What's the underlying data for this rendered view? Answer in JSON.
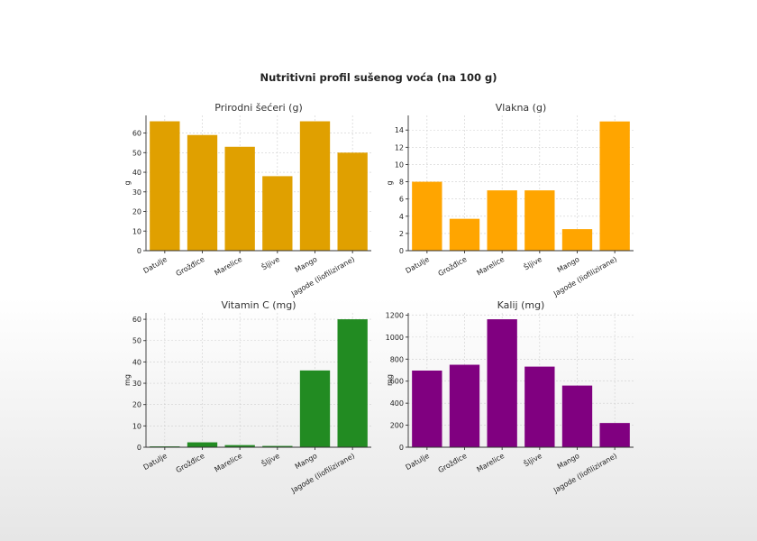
{
  "figure": {
    "title": "Nutritivni profil sušenog voća (na 100 g)"
  },
  "chart_data": [
    {
      "type": "bar",
      "title": "Prirodni šećeri (g)",
      "xlabel": "",
      "ylabel": "g",
      "categories": [
        "Datulje",
        "Grožđice",
        "Marelice",
        "Šljive",
        "Mango",
        "Jagode (liofilizirane)"
      ],
      "values": [
        66,
        59,
        53,
        38,
        66,
        50
      ],
      "ylim": [
        0,
        69
      ],
      "yticks": [
        0,
        10,
        20,
        30,
        40,
        50,
        60
      ],
      "color": "#E0A000",
      "grid": true
    },
    {
      "type": "bar",
      "title": "Vlakna (g)",
      "xlabel": "",
      "ylabel": "g",
      "categories": [
        "Datulje",
        "Grožđice",
        "Marelice",
        "Šljive",
        "Mango",
        "Jagode (liofilizirane)"
      ],
      "values": [
        8,
        3.7,
        7,
        7,
        2.5,
        15
      ],
      "ylim": [
        0,
        15.7
      ],
      "yticks": [
        0,
        2,
        4,
        6,
        8,
        10,
        12,
        14
      ],
      "color": "#FFA500",
      "grid": true
    },
    {
      "type": "bar",
      "title": "Vitamin C (mg)",
      "xlabel": "",
      "ylabel": "mg",
      "categories": [
        "Datulje",
        "Grožđice",
        "Marelice",
        "Šljive",
        "Mango",
        "Jagode (liofilizirane)"
      ],
      "values": [
        0.4,
        2.3,
        1,
        0.6,
        36,
        60
      ],
      "ylim": [
        0,
        63
      ],
      "yticks": [
        0,
        10,
        20,
        30,
        40,
        50,
        60
      ],
      "color": "#228B22",
      "grid": true
    },
    {
      "type": "bar",
      "title": "Kalij (mg)",
      "xlabel": "",
      "ylabel": "mg",
      "categories": [
        "Datulje",
        "Grožđice",
        "Marelice",
        "Šljive",
        "Mango",
        "Jagode (liofilizirane)"
      ],
      "values": [
        696,
        749,
        1162,
        732,
        560,
        220
      ],
      "ylim": [
        0,
        1220
      ],
      "yticks": [
        0,
        200,
        400,
        600,
        800,
        1000,
        1200
      ],
      "color": "#800080",
      "grid": true
    }
  ]
}
